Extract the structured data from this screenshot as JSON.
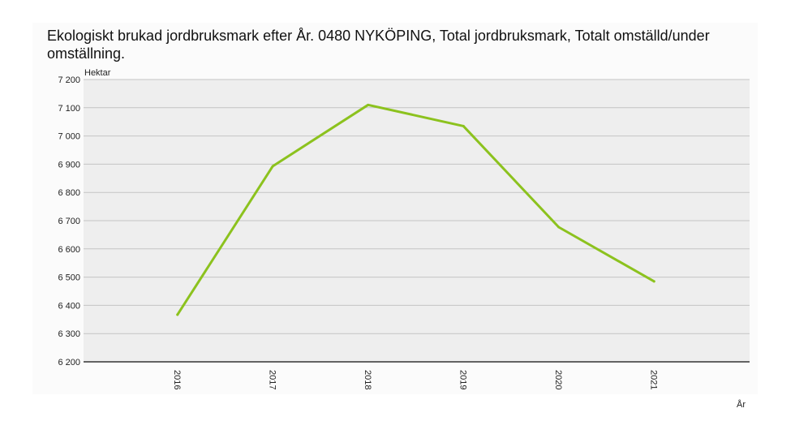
{
  "chart_data": {
    "type": "line",
    "title": "Ekologiskt brukad jordbruksmark efter År. 0480 NYKÖPING, Total jordbruksmark, Totalt omställd/under omställning.",
    "ylabel": "Hektar",
    "xlabel": "År",
    "categories": [
      "2016",
      "2017",
      "2018",
      "2019",
      "2020",
      "2021"
    ],
    "series": [
      {
        "values": [
          6367,
          6893,
          7110,
          7035,
          6677,
          6485
        ]
      }
    ],
    "ylim": [
      6200,
      7200
    ],
    "yticks": [
      "6 200",
      "6 300",
      "6 400",
      "6 500",
      "6 600",
      "6 700",
      "6 800",
      "6 900",
      "7 000",
      "7 100",
      "7 200"
    ],
    "grid": true,
    "colors": {
      "line": "#8cc21e",
      "plot_background": "#eeeeee",
      "grid": "#c4c4c4",
      "axis": "#333333"
    }
  }
}
